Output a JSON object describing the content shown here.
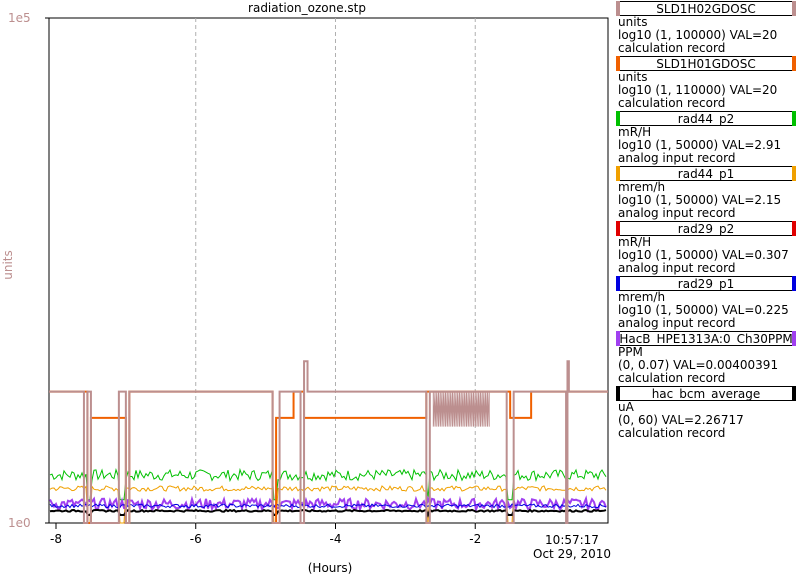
{
  "chart_data": {
    "type": "line",
    "title": "radiation_ozone.stp",
    "xlabel": "(Hours)",
    "ylabel": "units",
    "y_scale": "log",
    "ylim": [
      1,
      100000
    ],
    "y_ticks": [
      "1e0",
      "1e5"
    ],
    "xlim": [
      -8.1,
      -0.1
    ],
    "x_ticks": [
      "-8",
      "-6",
      "-4",
      "-2"
    ],
    "x_end_label": "10:57:17",
    "x_end_date": "Oct 29, 2010",
    "grid": true,
    "series": [
      {
        "name": "SLD1H02GDOSC",
        "color": "#bc8f8f",
        "values_desc": "step ~20 with dropouts"
      },
      {
        "name": "SLD1H01GDOSC",
        "color": "#f06000",
        "values_desc": "step ~20 / ~11"
      },
      {
        "name": "rad44_p2",
        "color": "#00c000",
        "values_desc": "~3"
      },
      {
        "name": "rad44_p1",
        "color": "#f0a000",
        "values_desc": "~2.2"
      },
      {
        "name": "rad29_p2",
        "color": "#e00000",
        "values_desc": "~0.3"
      },
      {
        "name": "rad29_p1",
        "color": "#0000e0",
        "values_desc": "~0.2"
      },
      {
        "name": "HacB_HPE1313A:0_Ch30PPM",
        "color": "#a040f0",
        "values_desc": "~0.004 of 0.07"
      },
      {
        "name": "hac_bcm_average",
        "color": "#000000",
        "values_desc": "~2.3 of 60"
      }
    ]
  },
  "legend": [
    {
      "name": "SLD1H02GDOSC",
      "color": "#bc8f8f",
      "units": "units",
      "range": "log10 (1, 100000) VAL=20",
      "rtype": "calculation record"
    },
    {
      "name": "SLD1H01GDOSC",
      "color": "#f06000",
      "units": "units",
      "range": "log10 (1, 110000) VAL=20",
      "rtype": "calculation record"
    },
    {
      "name": "rad44_p2",
      "color": "#00c000",
      "units": "mR/H",
      "range": "log10 (1, 50000) VAL=2.91",
      "rtype": "analog input record"
    },
    {
      "name": "rad44_p1",
      "color": "#f0a000",
      "units": "mrem/h",
      "range": "log10 (1, 50000) VAL=2.15",
      "rtype": "analog input record"
    },
    {
      "name": "rad29_p2",
      "color": "#e00000",
      "units": "mR/H",
      "range": "log10 (1, 50000) VAL=0.307",
      "rtype": "analog input record"
    },
    {
      "name": "rad29_p1",
      "color": "#0000e0",
      "units": "mrem/h",
      "range": "log10 (1, 50000) VAL=0.225",
      "rtype": "analog input record"
    },
    {
      "name": "HacB_HPE1313A:0_Ch30PPM",
      "color": "#a040f0",
      "units": "PPM",
      "range": "(0, 0.07) VAL=0.00400391",
      "rtype": "calculation record"
    },
    {
      "name": "hac_bcm_average",
      "color": "#000000",
      "units": "uA",
      "range": "(0, 60) VAL=2.26717",
      "rtype": "calculation record"
    }
  ]
}
